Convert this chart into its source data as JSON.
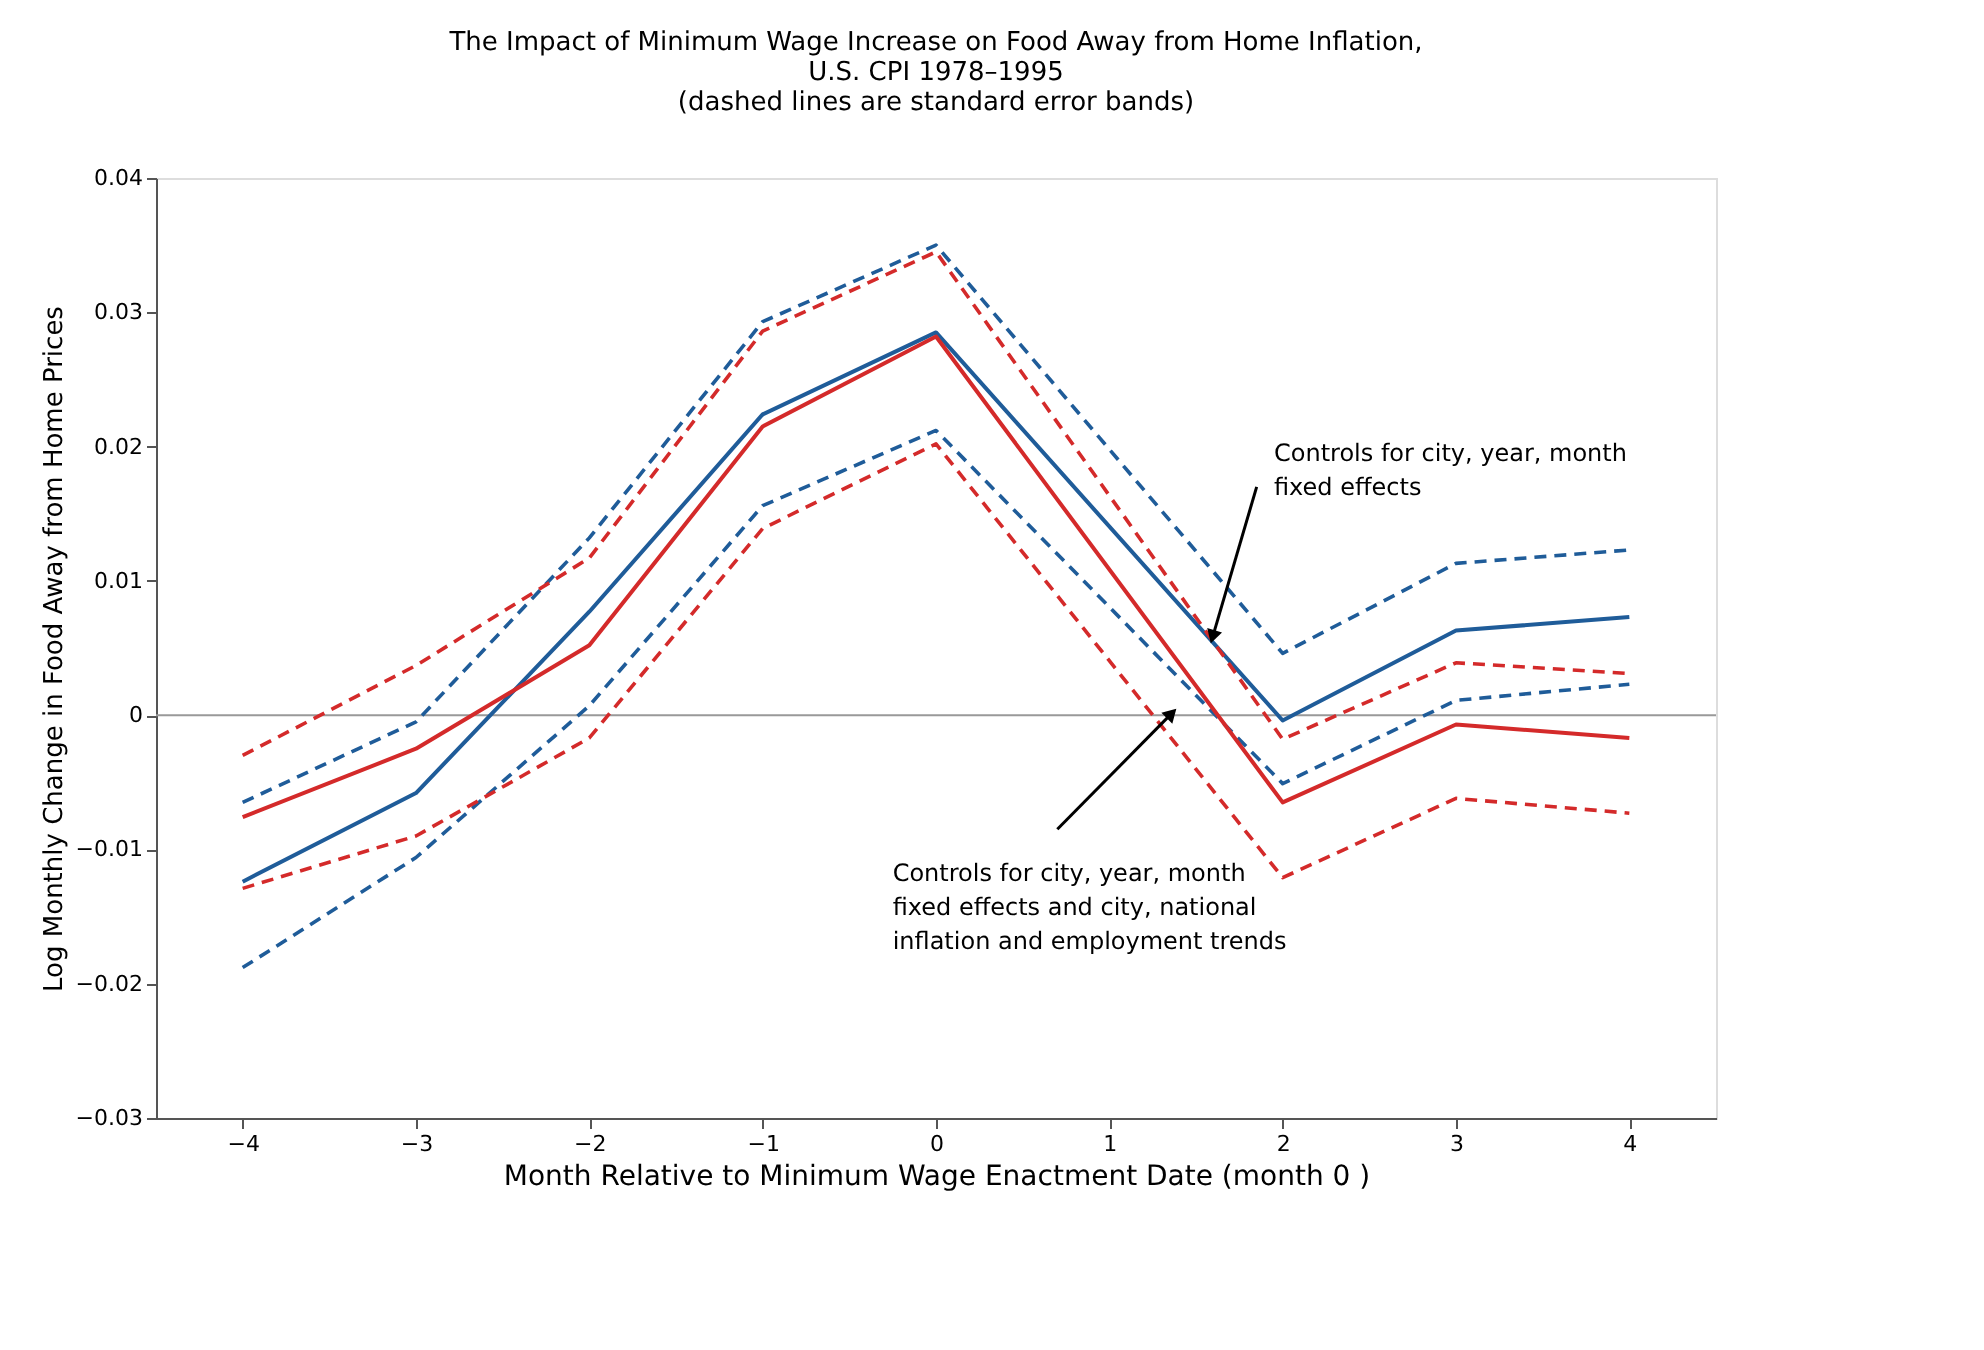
{
  "chart_data": {
    "type": "line",
    "title": [
      "The Impact of Minimum Wage Increase on Food Away from Home Inflation,",
      "U.S. CPI 1978–1995",
      "(dashed lines are standard error bands)"
    ],
    "xlabel": "Month Relative to Minimum Wage Enactment Date (month 0 )",
    "ylabel": "Log Monthly Change in Food Away from Home Prices",
    "x": [
      -4,
      -3,
      -2,
      -1,
      0,
      2,
      3,
      4
    ],
    "series": [
      {
        "color": "#1f5c99",
        "values": [
          -0.0124,
          -0.0058,
          0.0077,
          0.0224,
          0.0285,
          -0.0004,
          0.0063,
          0.0073
        ]
      },
      {
        "color": "#1f5c99",
        "line_style": "dashed",
        "values": [
          -0.0188,
          -0.0106,
          0.0007,
          0.0156,
          0.0212,
          -0.0051,
          0.0011,
          0.0023
        ]
      },
      {
        "color": "#1f5c99",
        "line_style": "dashed",
        "values": [
          -0.0065,
          -0.0005,
          0.0132,
          0.0293,
          0.035,
          0.0046,
          0.0113,
          0.0123
        ]
      },
      {
        "color": "#d42a2a",
        "values": [
          -0.0076,
          -0.0025,
          0.0052,
          0.0215,
          0.0282,
          -0.0065,
          -0.0007,
          -0.0017
        ]
      },
      {
        "color": "#d42a2a",
        "line_style": "dashed",
        "values": [
          -0.0129,
          -0.009,
          -0.0017,
          0.0139,
          0.0202,
          -0.0121,
          -0.0062,
          -0.0073
        ]
      },
      {
        "color": "#d42a2a",
        "line_style": "dashed",
        "values": [
          -0.003,
          0.0037,
          0.0117,
          0.0286,
          0.0345,
          -0.0018,
          0.0039,
          0.0031
        ]
      }
    ],
    "xlim": [
      -4.5,
      4.5
    ],
    "xticks": [
      -4,
      -3,
      -2,
      -1,
      0,
      1,
      2,
      3,
      4
    ],
    "ylim": [
      -0.03,
      0.04
    ],
    "yticks": [
      -0.03,
      -0.02,
      -0.01,
      0,
      0.01,
      0.02,
      0.03,
      0.04
    ],
    "ref_lines": [
      {
        "axis": "y",
        "value": 0,
        "color": "#999999"
      }
    ],
    "annotations": [
      {
        "text": "Controls for city, year, month\nfixed effects",
        "x": 1.6,
        "y": 0.006
      },
      {
        "text": "Controls for city, year, month\nfixed effects and city, national\ninflation and employment trends",
        "x": 1.35,
        "y": 0.0
      }
    ],
    "grid": false,
    "line_style": "solid",
    "marker": "none"
  }
}
